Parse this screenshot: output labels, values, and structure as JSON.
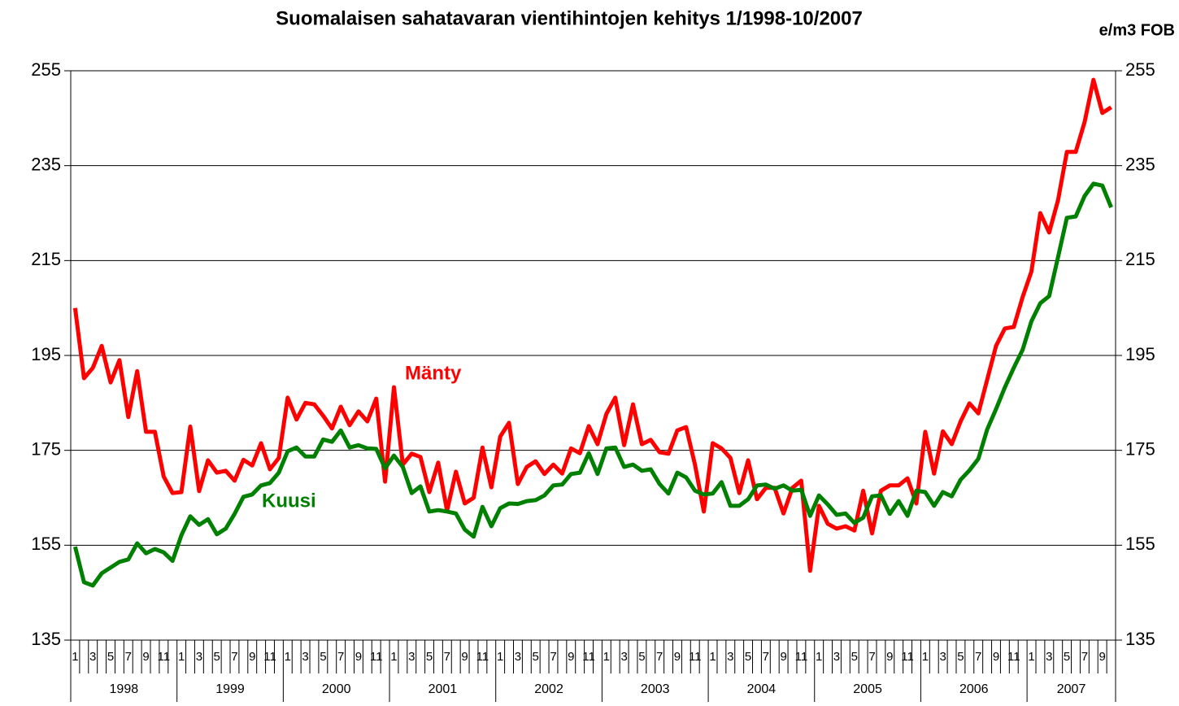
{
  "chart_data": {
    "type": "line",
    "title": "Suomalaisen sahatavaran vientihintojen kehitys 1/1998-10/2007",
    "unit_label": "e/m3 FOB",
    "categories": [
      "1",
      null,
      "3",
      null,
      "5",
      null,
      "7",
      null,
      "9",
      null,
      "11",
      null,
      "1",
      null,
      "3",
      null,
      "5",
      null,
      "7",
      null,
      "9",
      null,
      "11",
      null,
      "1",
      null,
      "3",
      null,
      "5",
      null,
      "7",
      null,
      "9",
      null,
      "11",
      null,
      "1",
      null,
      "3",
      null,
      "5",
      null,
      "7",
      null,
      "9",
      null,
      "11",
      null,
      "1",
      null,
      "3",
      null,
      "5",
      null,
      "7",
      null,
      "9",
      null,
      "11",
      null,
      "1",
      null,
      "3",
      null,
      "5",
      null,
      "7",
      null,
      "9",
      null,
      "11",
      null,
      "1",
      null,
      "3",
      null,
      "5",
      null,
      "7",
      null,
      "9",
      null,
      "11",
      null,
      "1",
      null,
      "3",
      null,
      "5",
      null,
      "7",
      null,
      "9",
      null,
      "11",
      null,
      "1",
      null,
      "3",
      null,
      "5",
      null,
      "7",
      null,
      "9",
      null,
      "11",
      null,
      "1",
      null,
      "3",
      null,
      "5",
      null,
      "7",
      null,
      "9",
      null
    ],
    "years": [
      "1998",
      "1999",
      "2000",
      "2001",
      "2002",
      "2003",
      "2004",
      "2005",
      "2006",
      "2007"
    ],
    "series": [
      {
        "name": "Mänty",
        "color": "#ff0000",
        "values": [
          205,
          190.2,
          192.4,
          197,
          189.3,
          194,
          182,
          191.7,
          178.9,
          178.9,
          169.5,
          166,
          166.2,
          180,
          166.4,
          172.9,
          170.3,
          170.7,
          168.6,
          173,
          171.8,
          176.5,
          171,
          173.4,
          186.1,
          181.5,
          185,
          184.7,
          182.3,
          179.6,
          184.2,
          180.3,
          183.2,
          181.1,
          185.9,
          168.4,
          188.3,
          172,
          174.3,
          173.6,
          166.2,
          172.4,
          162.3,
          170.5,
          163.8,
          165,
          175.6,
          167.2,
          177.9,
          180.8,
          167.9,
          171.5,
          172.7,
          170,
          172,
          170.1,
          175.4,
          174.4,
          180.1,
          176.3,
          182.7,
          186.1,
          176.1,
          184.7,
          176.3,
          177.2,
          174.6,
          174.3,
          179.2,
          179.9,
          172,
          162.1,
          176.5,
          175.4,
          173.4,
          166,
          172.9,
          164.7,
          167.1,
          167.1,
          161.7,
          167.1,
          168.6,
          149.6,
          163.3,
          159.5,
          158.5,
          159,
          158.1,
          166.5,
          157.5,
          166.5,
          167.6,
          167.6,
          169.1,
          163.8,
          178.9,
          170.1,
          179,
          176.3,
          181.1,
          184.9,
          182.8,
          189.9,
          197,
          200.7,
          201,
          207.3,
          212.7,
          225,
          220.9,
          227.7,
          237.9,
          237.9,
          244.2,
          253.1,
          246.1,
          247.3
        ]
      },
      {
        "name": "Kuusi",
        "color": "#008000",
        "values": [
          154.7,
          147.2,
          146.5,
          149.1,
          150.3,
          151.5,
          152,
          155.4,
          153.3,
          154.2,
          153.5,
          151.7,
          157.1,
          161.1,
          159.3,
          160.5,
          157.3,
          158.5,
          161.6,
          165.2,
          165.7,
          167.6,
          168.1,
          170.3,
          174.8,
          175.6,
          173.7,
          173.7,
          177.3,
          176.8,
          179.2,
          175.6,
          176.1,
          175.4,
          175.3,
          171.2,
          173.9,
          171.5,
          166,
          167.4,
          162.1,
          162.4,
          162.1,
          161.7,
          158.3,
          156.8,
          163.1,
          159,
          162.8,
          163.8,
          163.7,
          164.3,
          164.5,
          165.5,
          167.6,
          167.8,
          170,
          170.3,
          174.4,
          170,
          175.4,
          175.6,
          171.5,
          172,
          170.7,
          171,
          167.9,
          165.9,
          170.3,
          169.3,
          166.5,
          165.7,
          165.9,
          168.3,
          163.3,
          163.3,
          164.7,
          167.6,
          167.8,
          166.9,
          167.6,
          166.5,
          166.7,
          161.2,
          165.5,
          163.6,
          161.4,
          161.7,
          159.7,
          160.8,
          165.3,
          165.5,
          161.6,
          164.3,
          161.2,
          166.5,
          166.2,
          163.3,
          166.2,
          165.3,
          168.8,
          170.8,
          173.2,
          179.4,
          183.7,
          188.3,
          192.4,
          196.2,
          202.2,
          206,
          207.5,
          215.7,
          224,
          224.3,
          228.6,
          231.2,
          230.8,
          226.2
        ]
      }
    ],
    "ylim": [
      135,
      255
    ],
    "yticks": [
      135,
      155,
      175,
      195,
      215,
      235,
      255
    ],
    "grid": true
  }
}
